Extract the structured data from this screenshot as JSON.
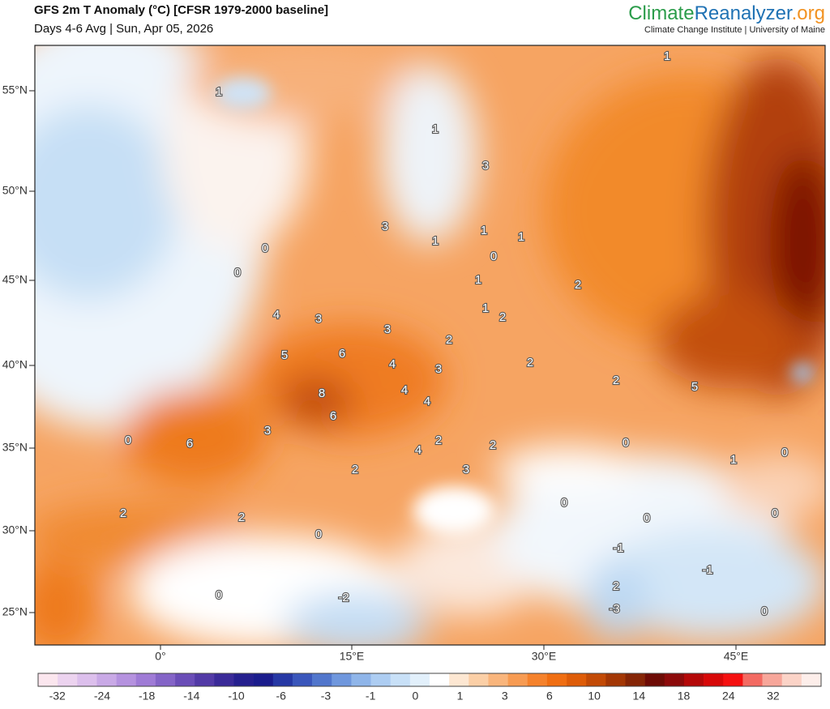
{
  "header": {
    "title": "GFS 2m T Anomaly (°C) [CFSR 1979-2000 baseline]",
    "subtitle": "Days 4-6 Avg | Sun, Apr 05, 2026"
  },
  "brand": {
    "part1": "Climate",
    "part2": "Reanalyzer",
    "part3": ".org",
    "tagline": "Climate Change Institute | University of Maine"
  },
  "map": {
    "lat_labels": [
      "55°N",
      "50°N",
      "45°N",
      "40°N",
      "35°N",
      "30°N",
      "25°N"
    ],
    "lon_labels": [
      "0°",
      "15°E",
      "30°E",
      "45°E"
    ],
    "contour_labels": [
      "1",
      "1",
      "1",
      "3",
      "3",
      "1",
      "1",
      "1",
      "0",
      "0",
      "0",
      "1",
      "2",
      "4",
      "3",
      "1",
      "2",
      "3",
      "2",
      "5",
      "6",
      "4",
      "3",
      "2",
      "2",
      "5",
      "8",
      "4",
      "4",
      "6",
      "3",
      "0",
      "6",
      "2",
      "2",
      "0",
      "4",
      "0",
      "1",
      "3",
      "2",
      "0",
      "2",
      "2",
      "0",
      "0",
      "0",
      "-1",
      "-1",
      "2",
      "0",
      "-2",
      "-3",
      "0"
    ]
  },
  "colorbar": {
    "colors": [
      "#fbe6ee",
      "#ecd3ef",
      "#dcbfec",
      "#c9a9e6",
      "#b592df",
      "#9f7bd6",
      "#8464c7",
      "#6a4db7",
      "#523aa6",
      "#3a2a98",
      "#251f8e",
      "#1a1c8c",
      "#2638a4",
      "#3a56bb",
      "#5176cc",
      "#6f97dd",
      "#8fb5e9",
      "#adcdf2",
      "#c8e0f7",
      "#e2f0fb",
      "#ffffff",
      "#fde7d2",
      "#fbcfa6",
      "#f9b57c",
      "#f79b52",
      "#f5822c",
      "#f06e12",
      "#de5c08",
      "#c24a06",
      "#a33705",
      "#852506",
      "#6d0b05",
      "#8c0a0a",
      "#b40808",
      "#d70808",
      "#f51010",
      "#f36a62",
      "#f7a69a",
      "#fbd3c7",
      "#fdeeea"
    ],
    "labels": [
      -32,
      -24,
      -18,
      -14,
      -10,
      -6,
      -3,
      -1,
      0,
      1,
      3,
      6,
      10,
      14,
      18,
      24,
      32
    ]
  }
}
